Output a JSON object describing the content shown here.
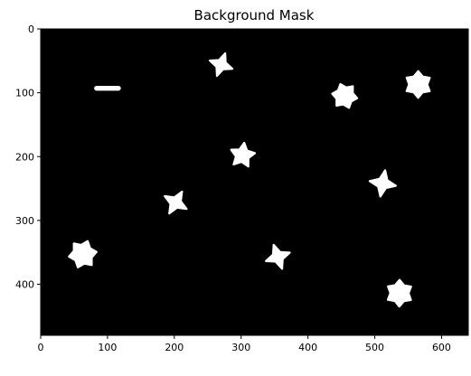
{
  "chart_data": {
    "type": "heatmap",
    "title": "Background Mask",
    "xlabel": "",
    "ylabel": "",
    "xlim": [
      0,
      640
    ],
    "ylim": [
      480,
      0
    ],
    "x_ticks": [
      0,
      100,
      200,
      300,
      400,
      500,
      600
    ],
    "y_ticks": [
      0,
      100,
      200,
      300,
      400
    ],
    "image": {
      "width": 640,
      "height": 480,
      "background": "#000000",
      "foreground": "#ffffff"
    },
    "objects": [
      {
        "shape": "bar",
        "x": 100,
        "y": 93,
        "r": 20
      },
      {
        "shape": "star4",
        "x": 270,
        "y": 56,
        "r": 18
      },
      {
        "shape": "star6",
        "x": 455,
        "y": 105,
        "r": 19
      },
      {
        "shape": "star6",
        "x": 565,
        "y": 87,
        "r": 20
      },
      {
        "shape": "star5",
        "x": 302,
        "y": 198,
        "r": 19
      },
      {
        "shape": "star4",
        "x": 512,
        "y": 242,
        "r": 20
      },
      {
        "shape": "star4",
        "x": 202,
        "y": 272,
        "r": 19
      },
      {
        "shape": "star6",
        "x": 63,
        "y": 353,
        "r": 21
      },
      {
        "shape": "star4",
        "x": 355,
        "y": 357,
        "r": 19
      },
      {
        "shape": "star6",
        "x": 537,
        "y": 414,
        "r": 20
      }
    ]
  }
}
